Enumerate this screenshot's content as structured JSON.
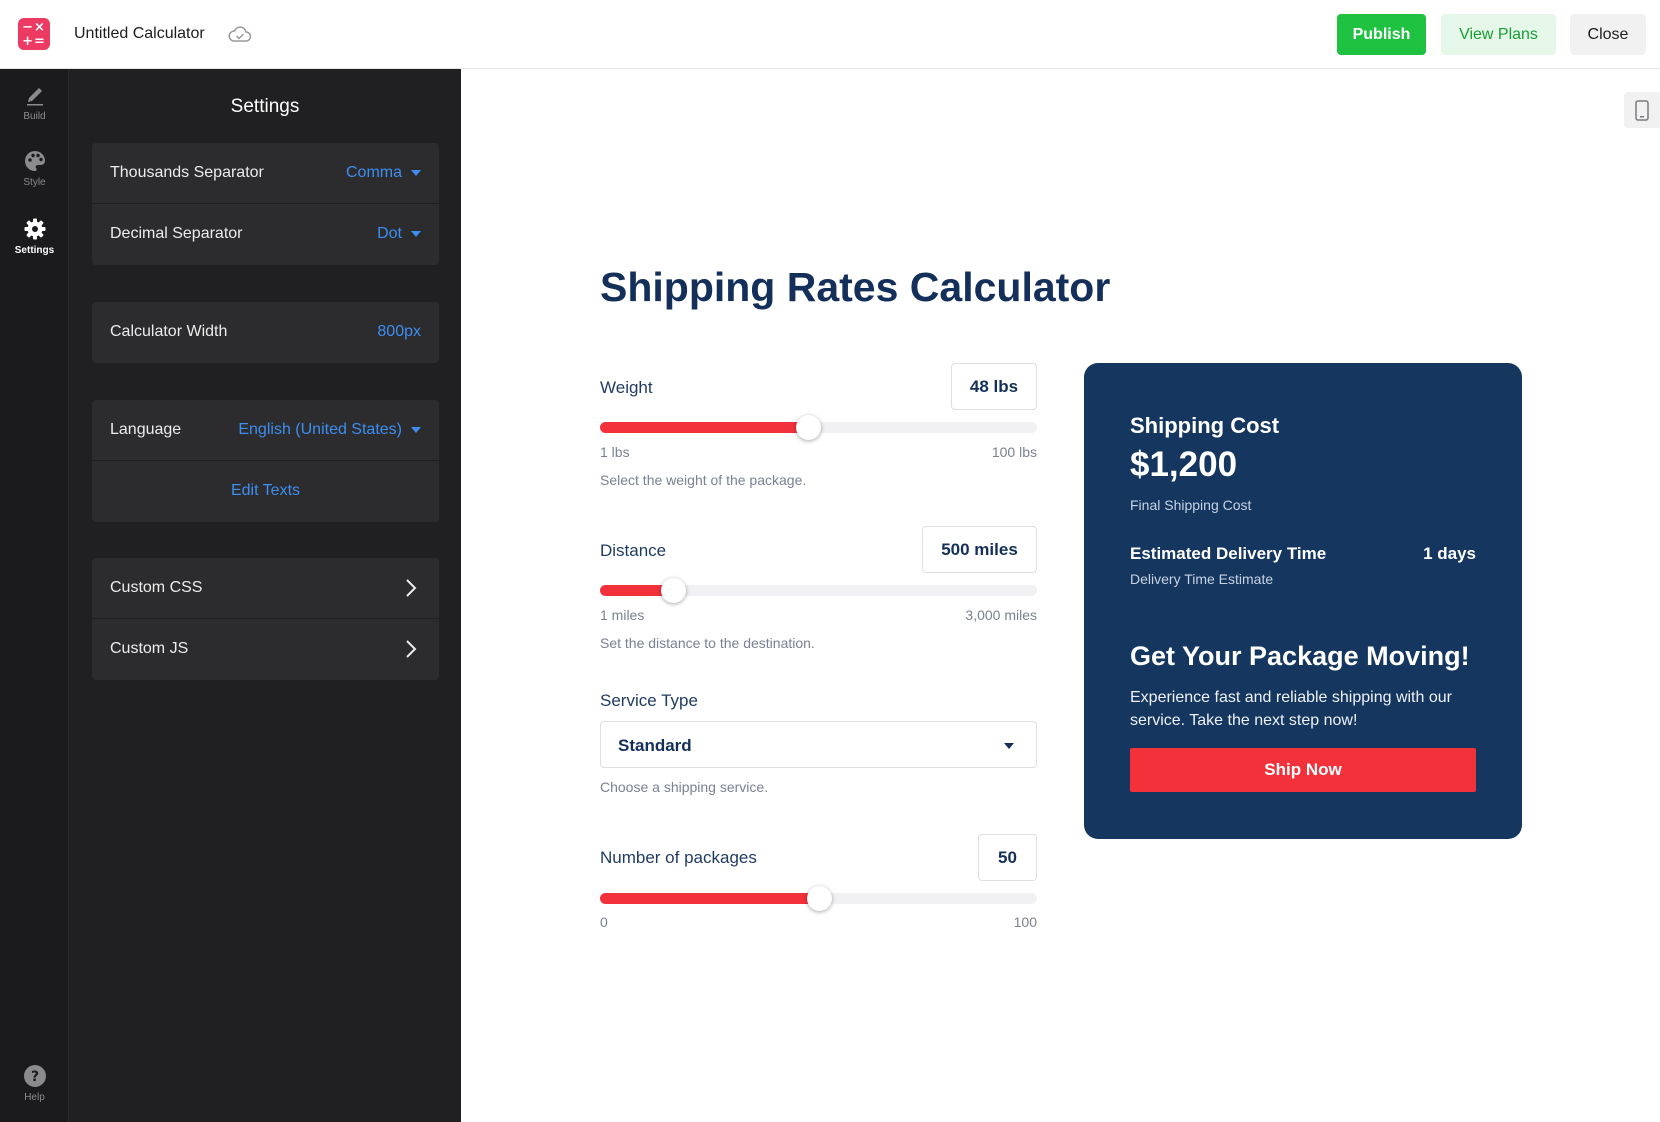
{
  "header": {
    "title": "Untitled Calculator",
    "publish_label": "Publish",
    "view_plans_label": "View Plans",
    "close_label": "Close",
    "accent": "#ec3a62"
  },
  "rail": {
    "build": "Build",
    "style": "Style",
    "settings": "Settings",
    "help": "Help"
  },
  "settings": {
    "title": "Settings",
    "thousands_label": "Thousands Separator",
    "thousands_value": "Comma",
    "decimal_label": "Decimal Separator",
    "decimal_value": "Dot",
    "width_label": "Calculator Width",
    "width_value": "800px",
    "language_label": "Language",
    "language_value": "English (United States)",
    "edit_texts": "Edit Texts",
    "custom_css": "Custom CSS",
    "custom_js": "Custom JS"
  },
  "calculator": {
    "title": "Shipping Rates Calculator",
    "weight": {
      "label": "Weight",
      "value": "48 lbs",
      "min": "1 lbs",
      "max": "100 lbs",
      "help": "Select the weight of the package.",
      "fraction": 0.475
    },
    "distance": {
      "label": "Distance",
      "value": "500 miles",
      "min": "1 miles",
      "max": "3,000 miles",
      "help": "Set the distance to the destination.",
      "fraction": 0.166
    },
    "service": {
      "label": "Service Type",
      "value": "Standard",
      "help": "Choose a shipping service."
    },
    "packages": {
      "label": "Number of packages",
      "value": "50",
      "min": "0",
      "max": "100",
      "fraction": 0.5
    },
    "slider_color": "#f2313b"
  },
  "result": {
    "cost_label": "Shipping Cost",
    "cost_value": "$1,200",
    "cost_desc": "Final Shipping Cost",
    "time_label": "Estimated Delivery Time",
    "time_value": "1 days",
    "time_desc": "Delivery Time Estimate",
    "cta_title": "Get Your Package Moving!",
    "cta_text": "Experience fast and reliable shipping with our service. Take the next step now!",
    "button": "Ship Now",
    "background": "#14365f"
  }
}
